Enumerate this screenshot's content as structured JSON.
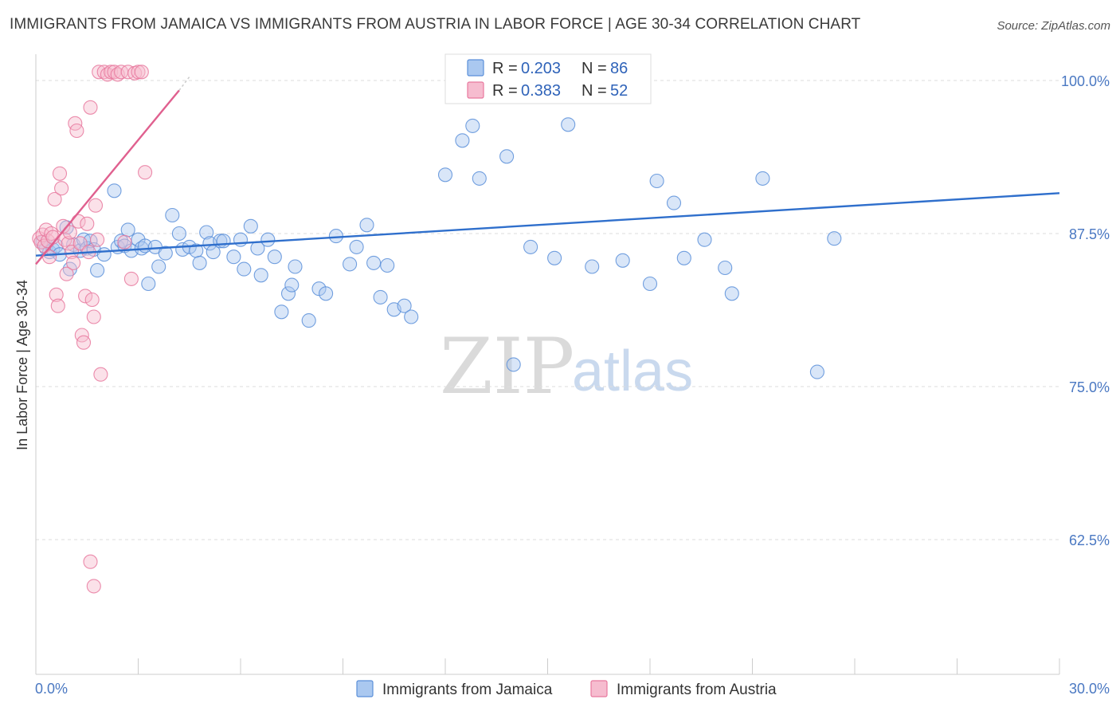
{
  "header": {
    "title": "IMMIGRANTS FROM JAMAICA VS IMMIGRANTS FROM AUSTRIA IN LABOR FORCE | AGE 30-34 CORRELATION CHART",
    "source": "Source: ZipAtlas.com"
  },
  "watermark": {
    "zip": "ZIP",
    "atlas": "atlas"
  },
  "colors": {
    "blue": "#5b8fd9",
    "blue_fill": "#aac8f0",
    "blue_line": "#2f6fcc",
    "pink": "#e8789e",
    "pink_fill": "#f6bccf",
    "pink_line": "#e0608f",
    "grid": "#dddddd",
    "tick_text": "#4a78c2"
  },
  "legend": {
    "series": [
      {
        "r_label": "R = ",
        "r_value": "0.203",
        "n_label": "N = ",
        "n_value": "86"
      },
      {
        "r_label": "R = ",
        "r_value": "0.383",
        "n_label": "N = ",
        "n_value": "52"
      }
    ]
  },
  "chart_data": {
    "type": "scatter",
    "title": "IMMIGRANTS FROM JAMAICA VS IMMIGRANTS FROM AUSTRIA IN LABOR FORCE | AGE 30-34 CORRELATION CHART",
    "xlabel": "",
    "ylabel": "In Labor Force | Age 30-34",
    "xlim": [
      0,
      30
    ],
    "ylim": [
      51.5,
      101.5
    ],
    "x_tick_labels": [
      "0.0%",
      "30.0%"
    ],
    "y_ticks": [
      {
        "value": 100,
        "label": "100.0%"
      },
      {
        "value": 87.5,
        "label": "87.5%"
      },
      {
        "value": 75,
        "label": "75.0%"
      },
      {
        "value": 62.5,
        "label": "62.5%"
      }
    ],
    "grid": true,
    "series": [
      {
        "name": "Immigrants from Jamaica",
        "color": "blue",
        "trend": {
          "x": [
            0.0,
            30.0
          ],
          "y": [
            85.7,
            90.8
          ]
        },
        "points": [
          [
            0.2,
            86.8
          ],
          [
            0.3,
            86.3
          ],
          [
            0.4,
            86.0
          ],
          [
            0.5,
            86.2
          ],
          [
            0.6,
            86.5
          ],
          [
            0.7,
            85.8
          ],
          [
            0.9,
            88.0
          ],
          [
            1.0,
            84.6
          ],
          [
            1.1,
            86.6
          ],
          [
            1.3,
            86.1
          ],
          [
            1.4,
            87.0
          ],
          [
            1.5,
            86.3
          ],
          [
            1.6,
            86.9
          ],
          [
            1.7,
            86.2
          ],
          [
            1.8,
            84.5
          ],
          [
            2.0,
            85.8
          ],
          [
            2.3,
            91.0
          ],
          [
            2.4,
            86.4
          ],
          [
            2.5,
            86.9
          ],
          [
            2.6,
            86.5
          ],
          [
            2.7,
            87.8
          ],
          [
            2.8,
            86.1
          ],
          [
            3.0,
            87.0
          ],
          [
            3.1,
            86.3
          ],
          [
            3.2,
            86.5
          ],
          [
            3.3,
            83.4
          ],
          [
            3.5,
            86.4
          ],
          [
            3.6,
            84.8
          ],
          [
            3.8,
            85.9
          ],
          [
            4.0,
            89.0
          ],
          [
            4.2,
            87.5
          ],
          [
            4.3,
            86.2
          ],
          [
            4.5,
            86.4
          ],
          [
            4.7,
            86.1
          ],
          [
            4.8,
            85.1
          ],
          [
            5.0,
            87.6
          ],
          [
            5.1,
            86.7
          ],
          [
            5.2,
            86.0
          ],
          [
            5.4,
            86.9
          ],
          [
            5.5,
            86.9
          ],
          [
            5.8,
            85.6
          ],
          [
            6.0,
            87.0
          ],
          [
            6.1,
            84.6
          ],
          [
            6.3,
            88.1
          ],
          [
            6.5,
            86.3
          ],
          [
            6.6,
            84.1
          ],
          [
            6.8,
            87.0
          ],
          [
            7.0,
            85.6
          ],
          [
            7.2,
            81.1
          ],
          [
            7.4,
            82.6
          ],
          [
            7.5,
            83.3
          ],
          [
            7.6,
            84.8
          ],
          [
            8.0,
            80.4
          ],
          [
            8.3,
            83.0
          ],
          [
            8.5,
            82.6
          ],
          [
            8.8,
            87.3
          ],
          [
            9.2,
            85.0
          ],
          [
            9.4,
            86.4
          ],
          [
            9.7,
            88.2
          ],
          [
            9.9,
            85.1
          ],
          [
            10.1,
            82.3
          ],
          [
            10.3,
            84.9
          ],
          [
            10.5,
            81.3
          ],
          [
            10.8,
            81.6
          ],
          [
            11.0,
            80.7
          ],
          [
            12.0,
            92.3
          ],
          [
            12.5,
            95.1
          ],
          [
            12.8,
            96.3
          ],
          [
            13.0,
            92.0
          ],
          [
            13.8,
            93.8
          ],
          [
            14.0,
            76.8
          ],
          [
            14.5,
            86.4
          ],
          [
            15.2,
            85.5
          ],
          [
            15.6,
            96.4
          ],
          [
            16.3,
            84.8
          ],
          [
            17.2,
            85.3
          ],
          [
            18.0,
            83.4
          ],
          [
            18.2,
            91.8
          ],
          [
            18.7,
            90.0
          ],
          [
            19.0,
            85.5
          ],
          [
            19.6,
            87.0
          ],
          [
            20.2,
            84.7
          ],
          [
            20.4,
            82.6
          ],
          [
            21.3,
            92.0
          ],
          [
            22.9,
            76.2
          ],
          [
            23.4,
            87.1
          ]
        ]
      },
      {
        "name": "Immigrants from Austria",
        "color": "pink",
        "trend": {
          "x": [
            0.0,
            4.2
          ],
          "y": [
            85.0,
            99.2
          ]
        },
        "trend_dashed": {
          "x": [
            4.2,
            4.5
          ],
          "y": [
            99.2,
            100.3
          ]
        },
        "points": [
          [
            0.1,
            87.1
          ],
          [
            0.15,
            86.8
          ],
          [
            0.2,
            87.4
          ],
          [
            0.25,
            86.5
          ],
          [
            0.3,
            87.8
          ],
          [
            0.35,
            86.9
          ],
          [
            0.4,
            85.6
          ],
          [
            0.45,
            87.5
          ],
          [
            0.5,
            87.2
          ],
          [
            0.55,
            90.3
          ],
          [
            0.6,
            82.5
          ],
          [
            0.65,
            81.6
          ],
          [
            0.7,
            92.4
          ],
          [
            0.75,
            91.2
          ],
          [
            0.8,
            88.1
          ],
          [
            0.85,
            87.0
          ],
          [
            0.9,
            84.2
          ],
          [
            0.95,
            86.7
          ],
          [
            1.0,
            87.6
          ],
          [
            1.05,
            86.0
          ],
          [
            1.1,
            85.1
          ],
          [
            1.15,
            96.5
          ],
          [
            1.2,
            95.9
          ],
          [
            1.25,
            88.5
          ],
          [
            1.3,
            86.7
          ],
          [
            1.35,
            79.2
          ],
          [
            1.4,
            78.6
          ],
          [
            1.45,
            82.4
          ],
          [
            1.5,
            88.3
          ],
          [
            1.55,
            86.0
          ],
          [
            1.6,
            97.8
          ],
          [
            1.65,
            82.1
          ],
          [
            1.7,
            80.7
          ],
          [
            1.75,
            89.8
          ],
          [
            1.8,
            87.0
          ],
          [
            1.85,
            100.7
          ],
          [
            1.9,
            76.0
          ],
          [
            2.0,
            100.7
          ],
          [
            2.1,
            100.5
          ],
          [
            2.2,
            100.7
          ],
          [
            2.3,
            100.7
          ],
          [
            2.4,
            100.5
          ],
          [
            2.5,
            100.7
          ],
          [
            2.6,
            86.8
          ],
          [
            2.7,
            100.7
          ],
          [
            2.8,
            83.8
          ],
          [
            2.9,
            100.6
          ],
          [
            3.0,
            100.7
          ],
          [
            3.1,
            100.7
          ],
          [
            3.2,
            92.5
          ],
          [
            1.6,
            60.7
          ],
          [
            1.7,
            58.7
          ]
        ]
      }
    ]
  },
  "bottom_legend": {
    "items": [
      {
        "label": "Immigrants from Jamaica"
      },
      {
        "label": "Immigrants from Austria"
      }
    ]
  }
}
